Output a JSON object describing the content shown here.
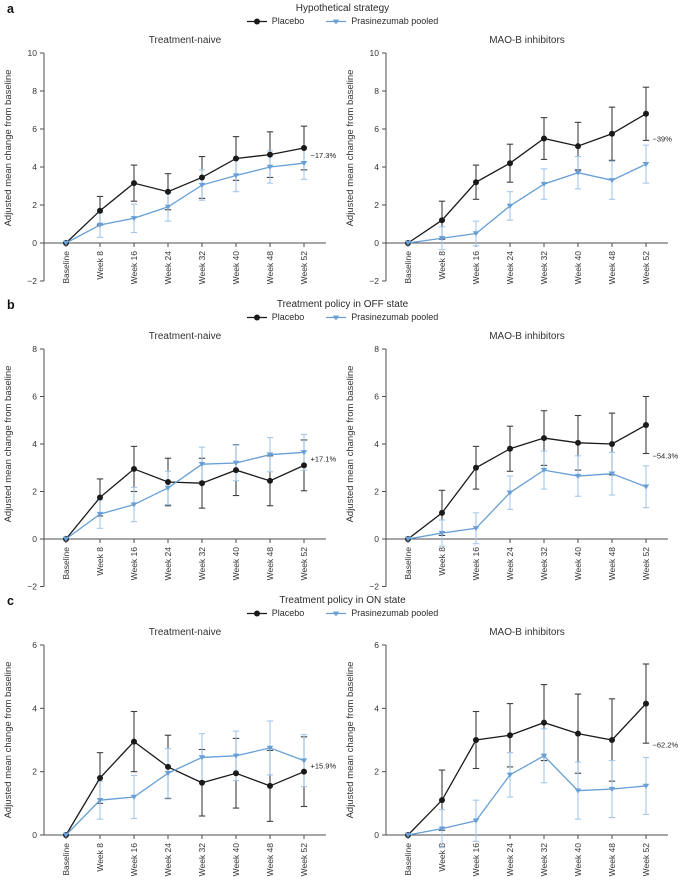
{
  "colors": {
    "placebo": "#1a1a1a",
    "placebo_error": "#3f3f3f",
    "prasinezumab": "#679fd6",
    "prasinezumab_error": "#a5c8ea",
    "axis": "#4d4d4d",
    "text": "#333333",
    "annotation": "#222222"
  },
  "chart_data": [
    {
      "type": "line",
      "letter": "a",
      "title": "Hypothetical strategy",
      "legend": [
        "Placebo",
        "Prasinezumab pooled"
      ],
      "ylabel": "Adjusted mean change from baseline",
      "categories": [
        "Baseline",
        "Week 8",
        "Week 16",
        "Week 24",
        "Week 32",
        "Week 40",
        "Week 48",
        "Week 52"
      ],
      "ylim": [
        -2,
        10
      ],
      "yticks": [
        10,
        8,
        6,
        4,
        2,
        0,
        -2
      ],
      "grid": false,
      "legend_position": "top-center",
      "panels": [
        {
          "title": "Treatment-naive",
          "annotation": "−17.3%",
          "series": [
            {
              "name": "Placebo",
              "values": [
                0,
                1.7,
                3.15,
                2.7,
                3.45,
                4.45,
                4.65,
                5.0
              ],
              "ci": [
                0,
                0.75,
                0.95,
                0.95,
                1.1,
                1.15,
                1.2,
                1.15
              ]
            },
            {
              "name": "Prasinezumab pooled",
              "values": [
                0,
                0.95,
                1.3,
                1.9,
                3.05,
                3.55,
                4.0,
                4.2
              ],
              "ci": [
                0,
                0.65,
                0.75,
                0.75,
                0.8,
                0.85,
                0.85,
                0.85
              ]
            }
          ]
        },
        {
          "title": "MAO-B inhibitors",
          "annotation": "−39%",
          "series": [
            {
              "name": "Placebo",
              "values": [
                0,
                1.2,
                3.2,
                4.2,
                5.5,
                5.1,
                5.75,
                6.8
              ],
              "ci": [
                0,
                1.0,
                0.9,
                1.0,
                1.1,
                1.25,
                1.4,
                1.4
              ]
            },
            {
              "name": "Prasinezumab pooled",
              "values": [
                0,
                0.25,
                0.5,
                1.95,
                3.1,
                3.7,
                3.3,
                4.15
              ],
              "ci": [
                0,
                0.6,
                0.65,
                0.75,
                0.8,
                0.85,
                1.0,
                1.0
              ]
            }
          ]
        }
      ]
    },
    {
      "type": "line",
      "letter": "b",
      "title": "Treatment policy in OFF state",
      "legend": [
        "Placebo",
        "Prasinezumab pooled"
      ],
      "ylabel": "Adjusted mean change from baseline",
      "categories": [
        "Baseline",
        "Week 8",
        "Week 16",
        "Week 24",
        "Week 32",
        "Week 40",
        "Week 48",
        "Week 52"
      ],
      "ylim": [
        -2,
        8
      ],
      "yticks": [
        8,
        6,
        4,
        2,
        0,
        -2
      ],
      "grid": false,
      "legend_position": "top-center",
      "panels": [
        {
          "title": "Treatment-naive",
          "annotation": "+17.1%",
          "series": [
            {
              "name": "Placebo",
              "values": [
                0,
                1.75,
                2.95,
                2.4,
                2.35,
                2.9,
                2.45,
                3.1
              ],
              "ci": [
                0,
                0.78,
                0.95,
                1.0,
                1.05,
                1.07,
                1.05,
                1.07
              ]
            },
            {
              "name": "Prasinezumab pooled",
              "values": [
                0,
                1.05,
                1.45,
                2.15,
                3.15,
                3.2,
                3.55,
                3.65
              ],
              "ci": [
                0,
                0.6,
                0.72,
                0.7,
                0.72,
                0.75,
                0.72,
                0.75
              ]
            }
          ]
        },
        {
          "title": "MAO-B inhibitors",
          "annotation": "−54.3%",
          "series": [
            {
              "name": "Placebo",
              "values": [
                0,
                1.1,
                3.0,
                3.8,
                4.25,
                4.05,
                4.0,
                4.8
              ],
              "ci": [
                0,
                0.95,
                0.9,
                0.95,
                1.15,
                1.15,
                1.3,
                1.2
              ]
            },
            {
              "name": "Prasinezumab pooled",
              "values": [
                0,
                0.25,
                0.45,
                1.95,
                2.9,
                2.65,
                2.75,
                2.2
              ],
              "ci": [
                0,
                0.55,
                0.65,
                0.7,
                0.8,
                0.85,
                0.9,
                0.88
              ]
            }
          ]
        }
      ]
    },
    {
      "type": "line",
      "letter": "c",
      "title": "Treatment policy in ON state",
      "legend": [
        "Placebo",
        "Prasinezumab pooled"
      ],
      "ylabel": "Adjusted mean change from baseline",
      "categories": [
        "Baseline",
        "Week 8",
        "Week 16",
        "Week 24",
        "Week 32",
        "Week 40",
        "Week 48",
        "Week 52"
      ],
      "ylim": [
        0,
        6
      ],
      "yticks": [
        6,
        4,
        2,
        0
      ],
      "grid": false,
      "legend_position": "top-center",
      "panels": [
        {
          "title": "Treatment-naive",
          "annotation": "+15.9%",
          "series": [
            {
              "name": "Placebo",
              "values": [
                0,
                1.8,
                2.95,
                2.15,
                1.65,
                1.95,
                1.55,
                2.0
              ],
              "ci": [
                0,
                0.8,
                0.95,
                1.0,
                1.05,
                1.1,
                1.12,
                1.1
              ]
            },
            {
              "name": "Prasinezumab pooled",
              "values": [
                0,
                1.1,
                1.2,
                1.95,
                2.45,
                2.5,
                2.75,
                2.35
              ],
              "ci": [
                0,
                0.6,
                0.68,
                0.78,
                0.75,
                0.78,
                0.85,
                0.82
              ]
            }
          ]
        },
        {
          "title": "MAO-B inhibitors",
          "annotation": "−62.2%",
          "series": [
            {
              "name": "Placebo",
              "values": [
                0,
                1.1,
                3.0,
                3.15,
                3.55,
                3.2,
                3.0,
                4.15
              ],
              "ci": [
                0,
                0.95,
                0.9,
                1.0,
                1.2,
                1.25,
                1.3,
                1.25
              ]
            },
            {
              "name": "Prasinezumab pooled",
              "values": [
                0,
                0.2,
                0.45,
                1.9,
                2.5,
                1.4,
                1.45,
                1.55
              ],
              "ci": [
                0,
                0.6,
                0.65,
                0.7,
                0.85,
                0.9,
                0.9,
                0.9
              ]
            }
          ]
        }
      ]
    }
  ]
}
